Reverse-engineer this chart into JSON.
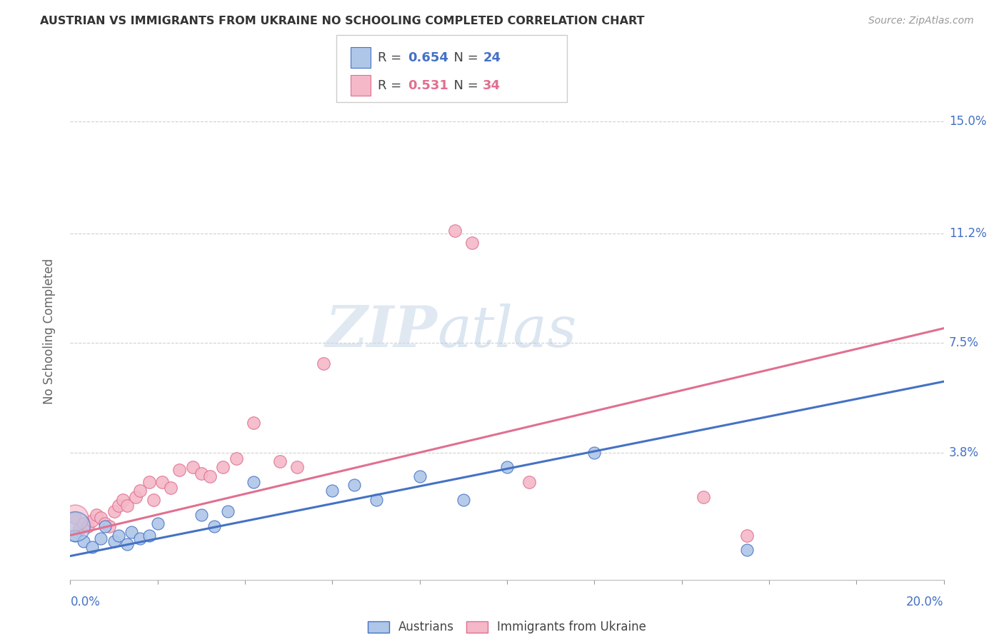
{
  "title": "AUSTRIAN VS IMMIGRANTS FROM UKRAINE NO SCHOOLING COMPLETED CORRELATION CHART",
  "source": "Source: ZipAtlas.com",
  "ylabel": "No Schooling Completed",
  "xlim": [
    0.0,
    0.2
  ],
  "ylim": [
    -0.005,
    0.163
  ],
  "legend_blue_R": "0.654",
  "legend_blue_N": "24",
  "legend_pink_R": "0.531",
  "legend_pink_N": "34",
  "blue_color": "#aec6e8",
  "blue_line_color": "#4472c4",
  "pink_color": "#f4b8c8",
  "pink_line_color": "#e07090",
  "background_color": "#ffffff",
  "grid_color": "#d0d0d0",
  "ytick_vals": [
    0.038,
    0.075,
    0.112,
    0.15
  ],
  "ytick_labels": [
    "3.8%",
    "7.5%",
    "11.2%",
    "15.0%"
  ],
  "blue_points_x": [
    0.001,
    0.003,
    0.005,
    0.007,
    0.008,
    0.01,
    0.011,
    0.013,
    0.014,
    0.016,
    0.018,
    0.02,
    0.03,
    0.033,
    0.036,
    0.042,
    0.06,
    0.065,
    0.07,
    0.08,
    0.09,
    0.1,
    0.12,
    0.155
  ],
  "blue_points_y": [
    0.01,
    0.008,
    0.006,
    0.009,
    0.013,
    0.008,
    0.01,
    0.007,
    0.011,
    0.009,
    0.01,
    0.014,
    0.017,
    0.013,
    0.018,
    0.028,
    0.025,
    0.027,
    0.022,
    0.03,
    0.022,
    0.033,
    0.038,
    0.005
  ],
  "pink_points_x": [
    0.001,
    0.002,
    0.003,
    0.004,
    0.005,
    0.006,
    0.007,
    0.008,
    0.009,
    0.01,
    0.011,
    0.012,
    0.013,
    0.015,
    0.016,
    0.018,
    0.019,
    0.021,
    0.023,
    0.025,
    0.028,
    0.03,
    0.032,
    0.035,
    0.038,
    0.042,
    0.048,
    0.052,
    0.058,
    0.088,
    0.092,
    0.105,
    0.145,
    0.155
  ],
  "pink_points_y": [
    0.016,
    0.012,
    0.014,
    0.013,
    0.015,
    0.017,
    0.016,
    0.014,
    0.013,
    0.018,
    0.02,
    0.022,
    0.02,
    0.023,
    0.025,
    0.028,
    0.022,
    0.028,
    0.026,
    0.032,
    0.033,
    0.031,
    0.03,
    0.033,
    0.036,
    0.048,
    0.035,
    0.033,
    0.068,
    0.113,
    0.109,
    0.028,
    0.023,
    0.01
  ],
  "blue_line_x": [
    0.0,
    0.2
  ],
  "blue_line_y": [
    0.003,
    0.062
  ],
  "pink_line_x": [
    0.0,
    0.2
  ],
  "pink_line_y": [
    0.01,
    0.08
  ]
}
